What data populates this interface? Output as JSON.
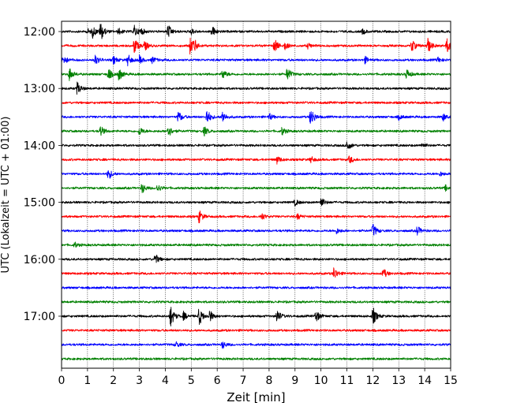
{
  "chart_data": {
    "type": "line",
    "title": "",
    "xlabel": "Zeit  [min]",
    "ylabel": "UTC (Lokalzeit = UTC + 01:00)",
    "xlim": [
      0,
      15
    ],
    "x_ticks": [
      0,
      1,
      2,
      3,
      4,
      5,
      6,
      7,
      8,
      9,
      10,
      11,
      12,
      13,
      14,
      15
    ],
    "y_tick_labels": [
      "12:00",
      "13:00",
      "14:00",
      "15:00",
      "16:00",
      "17:00"
    ],
    "trace_minutes": 15,
    "grid": "vertical dotted lines at each minute",
    "color_cycle": [
      "#000000",
      "#ff0000",
      "#0000ff",
      "#008000"
    ],
    "traces": [
      {
        "start": "12:00",
        "color": "#000000",
        "events": [
          [
            1.0,
            0.2
          ],
          [
            1.2,
            0.4
          ],
          [
            1.5,
            0.75
          ],
          [
            2.2,
            0.25
          ],
          [
            2.8,
            0.45
          ],
          [
            3.05,
            0.25
          ],
          [
            4.1,
            0.55
          ],
          [
            5.0,
            0.2
          ],
          [
            5.8,
            0.45
          ],
          [
            11.6,
            0.2
          ]
        ]
      },
      {
        "start": "12:15",
        "color": "#ff0000",
        "events": [
          [
            2.8,
            0.65
          ],
          [
            3.2,
            0.35
          ],
          [
            4.95,
            0.6
          ],
          [
            5.1,
            0.45
          ],
          [
            8.2,
            0.6
          ],
          [
            8.6,
            0.3
          ],
          [
            9.5,
            0.2
          ],
          [
            13.5,
            0.5
          ],
          [
            14.1,
            0.7
          ],
          [
            14.85,
            0.55
          ]
        ]
      },
      {
        "start": "12:30",
        "color": "#0000ff",
        "events": [
          [
            0.05,
            0.45
          ],
          [
            1.3,
            0.4
          ],
          [
            2.0,
            0.3
          ],
          [
            2.55,
            0.45
          ],
          [
            3.0,
            0.3
          ],
          [
            3.5,
            0.25
          ],
          [
            11.7,
            0.25
          ],
          [
            14.5,
            0.2
          ]
        ]
      },
      {
        "start": "12:45",
        "color": "#008000",
        "events": [
          [
            0.3,
            0.5
          ],
          [
            1.8,
            0.45
          ],
          [
            2.2,
            0.5
          ],
          [
            6.2,
            0.4
          ],
          [
            8.7,
            0.55
          ],
          [
            13.3,
            0.4
          ]
        ]
      },
      {
        "start": "13:00",
        "color": "#000000",
        "events": [
          [
            0.6,
            0.5
          ]
        ]
      },
      {
        "start": "13:15",
        "color": "#ff0000",
        "events": []
      },
      {
        "start": "13:30",
        "color": "#0000ff",
        "events": [
          [
            4.5,
            0.45
          ],
          [
            5.6,
            0.6
          ],
          [
            6.2,
            0.45
          ],
          [
            8.0,
            0.25
          ],
          [
            9.6,
            0.8
          ],
          [
            13.0,
            0.2
          ],
          [
            14.7,
            0.3
          ]
        ]
      },
      {
        "start": "13:45",
        "color": "#008000",
        "events": [
          [
            1.5,
            0.4
          ],
          [
            3.0,
            0.35
          ],
          [
            4.1,
            0.55
          ],
          [
            5.5,
            0.35
          ],
          [
            8.5,
            0.3
          ]
        ]
      },
      {
        "start": "14:00",
        "color": "#000000",
        "events": [
          [
            11.0,
            0.45
          ],
          [
            13.9,
            0.2
          ]
        ]
      },
      {
        "start": "14:15",
        "color": "#ff0000",
        "events": [
          [
            8.3,
            0.3
          ],
          [
            9.6,
            0.25
          ],
          [
            11.1,
            0.3
          ]
        ]
      },
      {
        "start": "14:30",
        "color": "#0000ff",
        "events": [
          [
            1.8,
            0.45
          ],
          [
            14.6,
            0.15
          ]
        ]
      },
      {
        "start": "14:45",
        "color": "#008000",
        "events": [
          [
            3.1,
            0.4
          ],
          [
            3.7,
            0.3
          ],
          [
            14.8,
            0.2
          ]
        ]
      },
      {
        "start": "15:00",
        "color": "#000000",
        "events": [
          [
            9.0,
            0.25
          ],
          [
            10.0,
            0.4
          ]
        ]
      },
      {
        "start": "15:15",
        "color": "#ff0000",
        "events": [
          [
            5.3,
            0.5
          ],
          [
            7.7,
            0.3
          ],
          [
            9.1,
            0.2
          ]
        ]
      },
      {
        "start": "15:30",
        "color": "#0000ff",
        "events": [
          [
            10.6,
            0.2
          ],
          [
            12.0,
            0.55
          ],
          [
            13.7,
            0.4
          ]
        ]
      },
      {
        "start": "15:45",
        "color": "#008000",
        "events": [
          [
            0.5,
            0.2
          ]
        ]
      },
      {
        "start": "16:00",
        "color": "#000000",
        "events": [
          [
            3.6,
            0.45
          ]
        ]
      },
      {
        "start": "16:15",
        "color": "#ff0000",
        "events": [
          [
            10.5,
            0.5
          ],
          [
            12.4,
            0.4
          ]
        ]
      },
      {
        "start": "16:30",
        "color": "#0000ff",
        "events": []
      },
      {
        "start": "16:45",
        "color": "#008000",
        "events": []
      },
      {
        "start": "17:00",
        "color": "#000000",
        "events": [
          [
            4.2,
            0.85
          ],
          [
            4.7,
            0.3
          ],
          [
            5.3,
            0.75
          ],
          [
            5.7,
            0.45
          ],
          [
            8.3,
            0.55
          ],
          [
            9.8,
            0.5
          ],
          [
            12.0,
            0.7
          ]
        ]
      },
      {
        "start": "17:15",
        "color": "#ff0000",
        "events": []
      },
      {
        "start": "17:30",
        "color": "#0000ff",
        "events": [
          [
            4.4,
            0.25
          ],
          [
            6.2,
            0.3
          ]
        ]
      },
      {
        "start": "17:45",
        "color": "#008000",
        "events": []
      }
    ]
  }
}
